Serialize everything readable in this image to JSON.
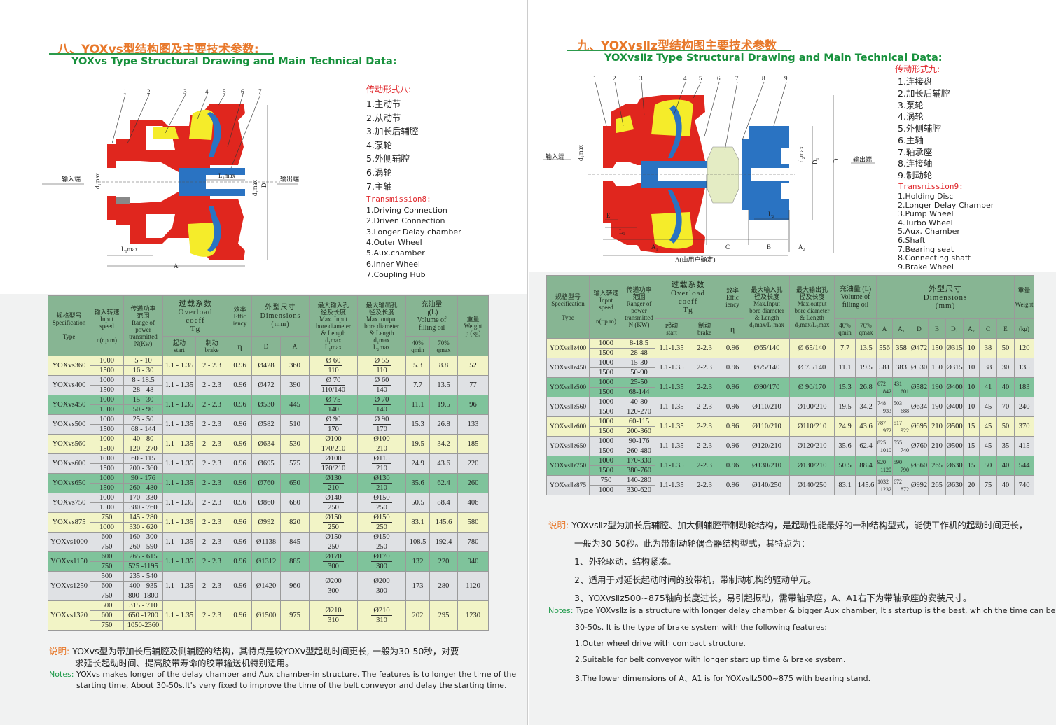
{
  "left": {
    "title_cn": "八、YOXvs型结构图及主要技术参数:",
    "title_en": "YOXvs Type Structural Drawing and Main Technical Data:",
    "diagram": {
      "numbers": [
        "1",
        "2",
        "3",
        "4",
        "5",
        "6",
        "7"
      ],
      "input_end": "输入端",
      "output_end": "输出端",
      "d1max": "d₁max",
      "d2max": "d₂max",
      "l2max": "L₂max",
      "l1max": "L₁max",
      "D": "D",
      "A": "A"
    },
    "legend": {
      "cn_heading": "传动形式八:",
      "cn_items": [
        "1.主动节",
        "2.从动节",
        "3.加长后辅腔",
        "4.泵轮",
        "5.外侧辅腔",
        "6.涡轮",
        "7.主轴"
      ],
      "en_heading": "Transmission8:",
      "en_items": [
        "1.Driving Connection",
        "2.Driven Connection",
        "3.Longer Delay chamber",
        "4.Outer Wheel",
        "5.Aux.chamber",
        "6.Inner Wheel",
        "7.Coupling Hub"
      ]
    },
    "table": {
      "headers": {
        "spec": "规格型号\nSpecification\n\nType",
        "speed": "输入转速\nInput\nspeed\n\nn(r.p.m)",
        "power": "传递功率\n范围\nRange of\npower\ntransmitted\nN(Kw)",
        "overload": "过载系数\nOverload\ncoeff\nTg",
        "start": "起动\nstart",
        "brake": "制动\nbrake",
        "eff": "效率\nEffic\niency",
        "eta": "η",
        "dims": "外型尺寸\nDimensions\n(mm)",
        "D": "D",
        "A": "A",
        "in": "最大输入孔\n径及长度\nMax. Input\nbore diameter\n& Length\nd₁max\nL₁max",
        "out": "最大输出孔\n径及长度\nMax. output\nbore diameter\n& Length\nd₂max\nL₂max",
        "oil": "充油量\nq(L)\nVolume of\nfilling oil",
        "qmin": "40%\nqmin",
        "qmax": "70%\nqmax",
        "weight": "重量\nWeight\np (kg)"
      },
      "rows": [
        {
          "spec": "YOXvs360",
          "speeds": [
            "1000",
            "1500"
          ],
          "power": [
            "5 - 10",
            "16 - 30"
          ],
          "start": "1.1 - 1.35",
          "brake": "2 - 2.3",
          "eff": "0.96",
          "D": "Ø428",
          "A": "360",
          "in_d": "Ø 60",
          "in_l": "110",
          "out_d": "Ø 55",
          "out_l": "110",
          "qmin": "5.3",
          "qmax": "8.8",
          "weight": "52",
          "color": "yellow"
        },
        {
          "spec": "YOXvs400",
          "speeds": [
            "1000",
            "1500"
          ],
          "power": [
            "8 - 18.5",
            "28 - 48"
          ],
          "start": "1.1 - 1.35",
          "brake": "2 - 2.3",
          "eff": "0.96",
          "D": "Ø472",
          "A": "390",
          "in_d": "Ø 70",
          "in_l": "110/140",
          "out_d": "Ø 60",
          "out_l": "140",
          "qmin": "7.7",
          "qmax": "13.5",
          "weight": "77",
          "color": "gray"
        },
        {
          "spec": "YOXvs450",
          "speeds": [
            "1000",
            "1500"
          ],
          "power": [
            "15 - 30",
            "50 - 90"
          ],
          "start": "1.1 - 1.35",
          "brake": "2 - 2.3",
          "eff": "0.96",
          "D": "Ø530",
          "A": "445",
          "in_d": "Ø 75",
          "in_l": "140",
          "out_d": "Ø 70",
          "out_l": "140",
          "qmin": "11.1",
          "qmax": "19.5",
          "weight": "96",
          "color": "green"
        },
        {
          "spec": "YOXvs500",
          "speeds": [
            "1000",
            "1500"
          ],
          "power": [
            "25 - 50",
            "68 - 144"
          ],
          "start": "1.1 - 1.35",
          "brake": "2 - 2.3",
          "eff": "0.96",
          "D": "Ø582",
          "A": "510",
          "in_d": "Ø 90",
          "in_l": "170",
          "out_d": "Ø 90",
          "out_l": "170",
          "qmin": "15.3",
          "qmax": "26.8",
          "weight": "133",
          "color": "gray"
        },
        {
          "spec": "YOXvs560",
          "speeds": [
            "1000",
            "1500"
          ],
          "power": [
            "40 - 80",
            "120 - 270"
          ],
          "start": "1.1 - 1.35",
          "brake": "2 - 2.3",
          "eff": "0.96",
          "D": "Ø634",
          "A": "530",
          "in_d": "Ø100",
          "in_l": "170/210",
          "out_d": "Ø100",
          "out_l": "210",
          "qmin": "19.5",
          "qmax": "34.2",
          "weight": "185",
          "color": "yellow"
        },
        {
          "spec": "YOXvs600",
          "speeds": [
            "1000",
            "1500"
          ],
          "power": [
            "60 - 115",
            "200 - 360"
          ],
          "start": "1.1 - 1.35",
          "brake": "2 - 2.3",
          "eff": "0.96",
          "D": "Ø695",
          "A": "575",
          "in_d": "Ø100",
          "in_l": "170/210",
          "out_d": "Ø115",
          "out_l": "210",
          "qmin": "24.9",
          "qmax": "43.6",
          "weight": "220",
          "color": "gray"
        },
        {
          "spec": "YOXvs650",
          "speeds": [
            "1000",
            "1500"
          ],
          "power": [
            "90 - 176",
            "260 - 480"
          ],
          "start": "1.1 - 1.35",
          "brake": "2 - 2.3",
          "eff": "0.96",
          "D": "Ø760",
          "A": "650",
          "in_d": "Ø130",
          "in_l": "210",
          "out_d": "Ø130",
          "out_l": "210",
          "qmin": "35.6",
          "qmax": "62.4",
          "weight": "260",
          "color": "green"
        },
        {
          "spec": "YOXvs750",
          "speeds": [
            "1000",
            "1500"
          ],
          "power": [
            "170 - 330",
            "380 - 760"
          ],
          "start": "1.1 - 1.35",
          "brake": "2 - 2.3",
          "eff": "0.96",
          "D": "Ø860",
          "A": "680",
          "in_d": "Ø140",
          "in_l": "250",
          "out_d": "Ø150",
          "out_l": "250",
          "qmin": "50.5",
          "qmax": "88.4",
          "weight": "406",
          "color": "gray"
        },
        {
          "spec": "YOXvs875",
          "speeds": [
            "750",
            "1000"
          ],
          "power": [
            "145 - 280",
            "330 - 620"
          ],
          "start": "1.1 - 1.35",
          "brake": "2 - 2.3",
          "eff": "0.96",
          "D": "Ø992",
          "A": "820",
          "in_d": "Ø150",
          "in_l": "250",
          "out_d": "Ø150",
          "out_l": "250",
          "qmin": "83.1",
          "qmax": "145.6",
          "weight": "580",
          "color": "yellow"
        },
        {
          "spec": "YOXvs1000",
          "speeds": [
            "600",
            "750"
          ],
          "power": [
            "160 - 300",
            "260 - 590"
          ],
          "start": "1.1 - 1.35",
          "brake": "2 - 2.3",
          "eff": "0.96",
          "D": "Ø1138",
          "A": "845",
          "in_d": "Ø150",
          "in_l": "250",
          "out_d": "Ø150",
          "out_l": "250",
          "qmin": "108.5",
          "qmax": "192.4",
          "weight": "780",
          "color": "gray"
        },
        {
          "spec": "YOXvs1150",
          "speeds": [
            "600",
            "750"
          ],
          "power": [
            "265 - 615",
            "525 -1195"
          ],
          "start": "1.1 - 1.35",
          "brake": "2 - 2.3",
          "eff": "0.96",
          "D": "Ø1312",
          "A": "885",
          "in_d": "Ø170",
          "in_l": "300",
          "out_d": "Ø170",
          "out_l": "300",
          "qmin": "132",
          "qmax": "220",
          "weight": "940",
          "color": "green"
        },
        {
          "spec": "YOXvs1250",
          "speeds": [
            "500",
            "600",
            "750"
          ],
          "power": [
            "235 - 540",
            "400 - 935",
            "800 -1800"
          ],
          "start": "1.1 - 1.35",
          "brake": "2 - 2.3",
          "eff": "0.96",
          "D": "Ø1420",
          "A": "960",
          "in_d": "Ø200",
          "in_l": "300",
          "out_d": "Ø200",
          "out_l": "300",
          "qmin": "173",
          "qmax": "280",
          "weight": "1120",
          "color": "gray"
        },
        {
          "spec": "YOXvs1320",
          "speeds": [
            "500",
            "600",
            "750"
          ],
          "power": [
            "315 - 710",
            "650 -1200",
            "1050-2360"
          ],
          "start": "1.1 - 1.35",
          "brake": "2 - 2.3",
          "eff": "0.96",
          "D": "Ø1500",
          "A": "975",
          "in_d": "Ø210",
          "in_l": "310",
          "out_d": "Ø210",
          "out_l": "310",
          "qmin": "202",
          "qmax": "295",
          "weight": "1230",
          "color": "yellow"
        }
      ]
    },
    "notes": {
      "cn_label": "说明:",
      "cn_line1": "YOXvs型为带加长后辅腔及侧辅腔的结构，其特点是较YOXv型起动时间更长, 一般为30-50秒，对要",
      "cn_line2": "求延长起动时间、提高胶带寿命的胶带输送机特别适用。",
      "en_label": "Notes:",
      "en_line1": "YOXvs makes longer of the delay chamber and Aux chamber-in structure. The features is to longer the time of the",
      "en_line2": "starting time, About 30-50s.It's very fixed to improve the time of the belt conveyor and delay the starting time."
    }
  },
  "right": {
    "title_cn": "九、YOXvsⅡz型结构图主要技术参数",
    "title_en": "YOXvsⅡz Type Structural Drawing and Main Technical Data:",
    "diagram": {
      "numbers": [
        "1",
        "2",
        "3",
        "4",
        "5",
        "6",
        "7",
        "8",
        "9"
      ],
      "input_end": "输入端",
      "output_end": "输出端",
      "d1max": "d₁max",
      "d2max": "d₂max",
      "D1": "D₁",
      "D": "D",
      "E": "E",
      "L1": "L₁",
      "L2": "L₂",
      "A1": "A₁",
      "C": "C",
      "B": "B",
      "A2": "A₂",
      "A": "A(由用户确定)"
    },
    "legend": {
      "cn_heading": "传动形式九:",
      "cn_items": [
        "1.连接盘",
        "2.加长后辅腔",
        "3.泵轮",
        "4.涡轮",
        "5.外侧辅腔",
        "6.主轴",
        "7.轴承座",
        "8.连接轴",
        "9.制动轮"
      ],
      "en_heading": "Transmission9:",
      "en_items": [
        "1.Holding Disc",
        "2.Longer Delay Chamber",
        "3.Pump Wheel",
        "4.Turbo Wheel",
        "5.Aux. Chamber",
        "6.Shaft",
        "7.Bearing seat",
        "8.Connecting shaft",
        "9.Brake Wheel"
      ]
    },
    "table": {
      "headers": {
        "spec": "规格型号\nSpecification\n\nType",
        "speed": "输入转速\nInput\nspeed\n\nn(r.p.m)",
        "power": "传递功率\n范围\nRanger of\npower\ntransmitted\nN (KW)",
        "overload": "过载系数\nOverload\ncoeff\nTg",
        "start": "起动\nstart",
        "brake": "制动\nbrake",
        "eff": "效率\nEffic\niency",
        "eta": "η",
        "in": "最大输入孔\n径及长度\nMax.Input\nbore diameter\n& Length\nd₁max/L₁max",
        "out": "最大输出孔\n径及长度\nMax.output\nbore diameter\n& Length\nd₂max/L₂max",
        "oil": "充油量 (L)\nVolume of\nfilling oil",
        "qmin": "40%\nqmin",
        "qmax": "70%\nqmax",
        "dims": "外型尺寸\nDimensions\n(mm)",
        "dim_cols": [
          "A",
          "A₁",
          "D",
          "B",
          "D₁",
          "A₂",
          "C",
          "E"
        ],
        "weight": "重量\n\nWeight",
        "kg": "(kg)"
      },
      "rows": [
        {
          "spec": "YOXvsⅡz400",
          "speeds": [
            "1000",
            "1500"
          ],
          "power": [
            "8-18.5",
            "28-48"
          ],
          "start": "1.1-1.35",
          "brake": "2-2.3",
          "eff": "0.96",
          "in": "Ø65/140",
          "out": "Ø 65/140",
          "qmin": "7.7",
          "qmax": "13.5",
          "A": [
            "556"
          ],
          "A1": [
            "358"
          ],
          "D": "Ø472",
          "B": "150",
          "D1": "Ø315",
          "A2": "10",
          "C": "38",
          "E": "50",
          "weight": "120",
          "color": "yellow"
        },
        {
          "spec": "YOXvsⅡz450",
          "speeds": [
            "1000",
            "1500"
          ],
          "power": [
            "15-30",
            "50-90"
          ],
          "start": "1.1-1.35",
          "brake": "2-2.3",
          "eff": "0.96",
          "in": "Ø75/140",
          "out": "Ø 75/140",
          "qmin": "11.1",
          "qmax": "19.5",
          "A": [
            "581"
          ],
          "A1": [
            "383"
          ],
          "D": "Ø530",
          "B": "150",
          "D1": "Ø315",
          "A2": "10",
          "C": "38",
          "E": "30",
          "weight": "135",
          "color": "gray"
        },
        {
          "spec": "YOXvsⅡz500",
          "speeds": [
            "1000",
            "1500"
          ],
          "power": [
            "25-50",
            "68-144"
          ],
          "start": "1.1-1.35",
          "brake": "2-2.3",
          "eff": "0.96",
          "in": "Ø90/170",
          "out": "Ø 90/170",
          "qmin": "15.3",
          "qmax": "26.8",
          "A": [
            "672",
            "842"
          ],
          "A1": [
            "431",
            "601"
          ],
          "D": "Ø582",
          "B": "190",
          "D1": "Ø400",
          "A2": "10",
          "C": "41",
          "E": "40",
          "weight": "183",
          "color": "green"
        },
        {
          "spec": "YOXvsⅡz560",
          "speeds": [
            "1000",
            "1500"
          ],
          "power": [
            "40-80",
            "120-270"
          ],
          "start": "1.1-1.35",
          "brake": "2-2.3",
          "eff": "0.96",
          "in": "Ø110/210",
          "out": "Ø100/210",
          "qmin": "19.5",
          "qmax": "34.2",
          "A": [
            "748",
            "933"
          ],
          "A1": [
            "503",
            "688"
          ],
          "D": "Ø634",
          "B": "190",
          "D1": "Ø400",
          "A2": "10",
          "C": "45",
          "E": "70",
          "weight": "240",
          "color": "gray"
        },
        {
          "spec": "YOXvsⅡz600",
          "speeds": [
            "1000",
            "1500"
          ],
          "power": [
            "60-115",
            "200-360"
          ],
          "start": "1.1-1.35",
          "brake": "2-2.3",
          "eff": "0.96",
          "in": "Ø110/210",
          "out": "Ø110/210",
          "qmin": "24.9",
          "qmax": "43.6",
          "A": [
            "787",
            "972"
          ],
          "A1": [
            "517",
            "922"
          ],
          "D": "Ø695",
          "B": "210",
          "D1": "Ø500",
          "A2": "15",
          "C": "45",
          "E": "50",
          "weight": "370",
          "color": "yellow"
        },
        {
          "spec": "YOXvsⅡz650",
          "speeds": [
            "1000",
            "1500"
          ],
          "power": [
            "90-176",
            "260-480"
          ],
          "start": "1.1-1.35",
          "brake": "2-2.3",
          "eff": "0.96",
          "in": "Ø120/210",
          "out": "Ø120/210",
          "qmin": "35.6",
          "qmax": "62.4",
          "A": [
            "825",
            "1010"
          ],
          "A1": [
            "555",
            "740"
          ],
          "D": "Ø760",
          "B": "210",
          "D1": "Ø500",
          "A2": "15",
          "C": "45",
          "E": "35",
          "weight": "415",
          "color": "gray"
        },
        {
          "spec": "YOXvsⅡz750",
          "speeds": [
            "1000",
            "1500"
          ],
          "power": [
            "170-330",
            "380-760"
          ],
          "start": "1.1-1.35",
          "brake": "2-2.3",
          "eff": "0.96",
          "in": "Ø130/210",
          "out": "Ø130/210",
          "qmin": "50.5",
          "qmax": "88.4",
          "A": [
            "920",
            "1120"
          ],
          "A1": [
            "590",
            "790"
          ],
          "D": "Ø860",
          "B": "265",
          "D1": "Ø630",
          "A2": "15",
          "C": "50",
          "E": "40",
          "weight": "544",
          "color": "green"
        },
        {
          "spec": "YOXvsⅡz875",
          "speeds": [
            "750",
            "1000"
          ],
          "power": [
            "140-280",
            "330-620"
          ],
          "start": "1.1-1.35",
          "brake": "2-2.3",
          "eff": "0.96",
          "in": "Ø140/250",
          "out": "Ø140/250",
          "qmin": "83.1",
          "qmax": "145.6",
          "A": [
            "1032",
            "1232"
          ],
          "A1": [
            "672",
            "872"
          ],
          "D": "Ø992",
          "B": "265",
          "D1": "Ø630",
          "A2": "20",
          "C": "75",
          "E": "40",
          "weight": "740",
          "color": "gray"
        }
      ]
    },
    "notes": {
      "cn_label": "说明:",
      "cn_lines": [
        "YOXvsⅡz型为加长后辅腔、加大侧辅腔带制动轮结构，是起动性能最好的一种结构型式，能使工作机的起动时间更长，",
        "一般为30-50秒。此为带制动轮偶合器结构型式，其特点为：",
        "1、外轮驱动，结构紧凑。",
        "2、适用于对延长起动时间的胶带机，带制动机构的驱动单元。",
        "3、YOXvsⅡz500~875轴向长度过长，易引起振动，需带轴承座，A、A1右下为带轴承座的安装尺寸。"
      ],
      "en_label": "Notes:",
      "en_lines": [
        "Type YOXvsⅡz is a structure with longer delay chamber &  bigger Aux chamber, It's startup is the best, which the time can be",
        "30-50s. It is the type of  brake system with the following features:",
        "1.Outer wheel drive with compact structure.",
        "2.Suitable for belt conveyor with longer start up time & brake system.",
        "3.The lower dimensions of A、A1 is for  YOXvsⅡz500~875 with bearing stand."
      ]
    }
  },
  "colors": {
    "header": "#87b593",
    "row_yellow": "#f2f4c6",
    "row_gray": "#dfe1e4",
    "row_green": "#7fc39b",
    "title_orange": "#e8782a",
    "title_green": "#17913c",
    "housing_red": "#e0261e",
    "oil_yellow": "#f5ec2a",
    "runner_blue": "#2a73c2"
  }
}
